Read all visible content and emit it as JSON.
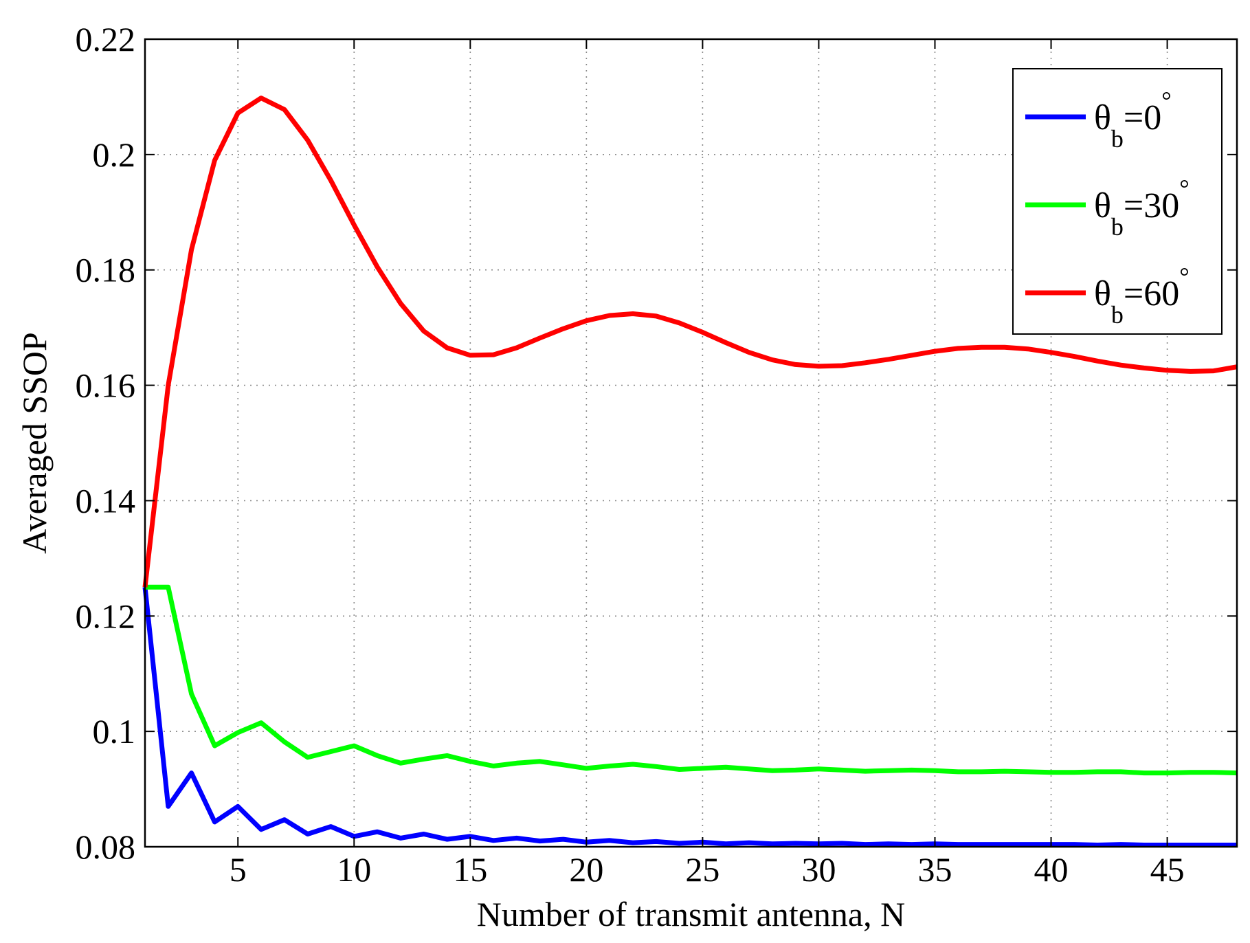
{
  "chart_data": {
    "type": "line",
    "xlabel": "Number of transmit antenna, N",
    "ylabel": "Averaged SSOP",
    "xlim": [
      1,
      48
    ],
    "ylim": [
      0.08,
      0.22
    ],
    "xticks": [
      5,
      10,
      15,
      20,
      25,
      30,
      35,
      40,
      45
    ],
    "yticks": [
      0.08,
      0.1,
      0.12,
      0.14,
      0.16,
      0.18,
      0.2,
      0.22
    ],
    "ytick_labels": [
      "0.08",
      "0.1",
      "0.12",
      "0.14",
      "0.16",
      "0.18",
      "0.2",
      "0.22"
    ],
    "grid": true,
    "legend_position": "top-right",
    "x": [
      1,
      2,
      3,
      4,
      5,
      6,
      7,
      8,
      9,
      10,
      11,
      12,
      13,
      14,
      15,
      16,
      17,
      18,
      19,
      20,
      21,
      22,
      23,
      24,
      25,
      26,
      27,
      28,
      29,
      30,
      31,
      32,
      33,
      34,
      35,
      36,
      37,
      38,
      39,
      40,
      41,
      42,
      43,
      44,
      45,
      46,
      47,
      48
    ],
    "series": [
      {
        "name": "θb=0°",
        "legend": {
          "symbol": "θ",
          "sub": "b",
          "value": "=0",
          "deg": "°"
        },
        "color": "#0000ff",
        "values": [
          0.125,
          0.087,
          0.0928,
          0.0843,
          0.087,
          0.083,
          0.0847,
          0.0822,
          0.0835,
          0.0818,
          0.0826,
          0.0815,
          0.0822,
          0.0813,
          0.0818,
          0.0811,
          0.0815,
          0.081,
          0.0813,
          0.0808,
          0.0811,
          0.0807,
          0.0809,
          0.0806,
          0.0808,
          0.0805,
          0.0807,
          0.0805,
          0.0806,
          0.0805,
          0.0806,
          0.0804,
          0.0805,
          0.0804,
          0.0805,
          0.0804,
          0.0804,
          0.0804,
          0.0804,
          0.0804,
          0.0804,
          0.0803,
          0.0804,
          0.0803,
          0.0803,
          0.0803,
          0.0803,
          0.0803
        ]
      },
      {
        "name": "θb=30°",
        "legend": {
          "symbol": "θ",
          "sub": "b",
          "value": "=30",
          "deg": "°"
        },
        "color": "#00ff00",
        "values": [
          0.125,
          0.125,
          0.1065,
          0.0975,
          0.0998,
          0.1015,
          0.0982,
          0.0955,
          0.0965,
          0.0975,
          0.0958,
          0.0945,
          0.0952,
          0.0958,
          0.0948,
          0.094,
          0.0945,
          0.0948,
          0.0942,
          0.0936,
          0.094,
          0.0943,
          0.0939,
          0.0934,
          0.0936,
          0.0938,
          0.0935,
          0.0932,
          0.0933,
          0.0935,
          0.0933,
          0.0931,
          0.0932,
          0.0933,
          0.0932,
          0.093,
          0.093,
          0.0931,
          0.093,
          0.0929,
          0.0929,
          0.093,
          0.093,
          0.0928,
          0.0928,
          0.0929,
          0.0929,
          0.0928
        ]
      },
      {
        "name": "θb=60°",
        "legend": {
          "symbol": "θ",
          "sub": "b",
          "value": "=60",
          "deg": "°"
        },
        "color": "#ff0000",
        "values": [
          0.125,
          0.16,
          0.1835,
          0.199,
          0.2072,
          0.2098,
          0.2078,
          0.2025,
          0.1955,
          0.1878,
          0.1805,
          0.1742,
          0.1694,
          0.1665,
          0.1652,
          0.1653,
          0.1665,
          0.1682,
          0.1698,
          0.1712,
          0.1721,
          0.1724,
          0.172,
          0.1708,
          0.1692,
          0.1674,
          0.1657,
          0.1644,
          0.1636,
          0.1633,
          0.1634,
          0.1639,
          0.1645,
          0.1652,
          0.1659,
          0.1664,
          0.1666,
          0.1666,
          0.1663,
          0.1657,
          0.165,
          0.1642,
          0.1635,
          0.163,
          0.1626,
          0.1624,
          0.1625,
          0.1632
        ]
      }
    ]
  }
}
